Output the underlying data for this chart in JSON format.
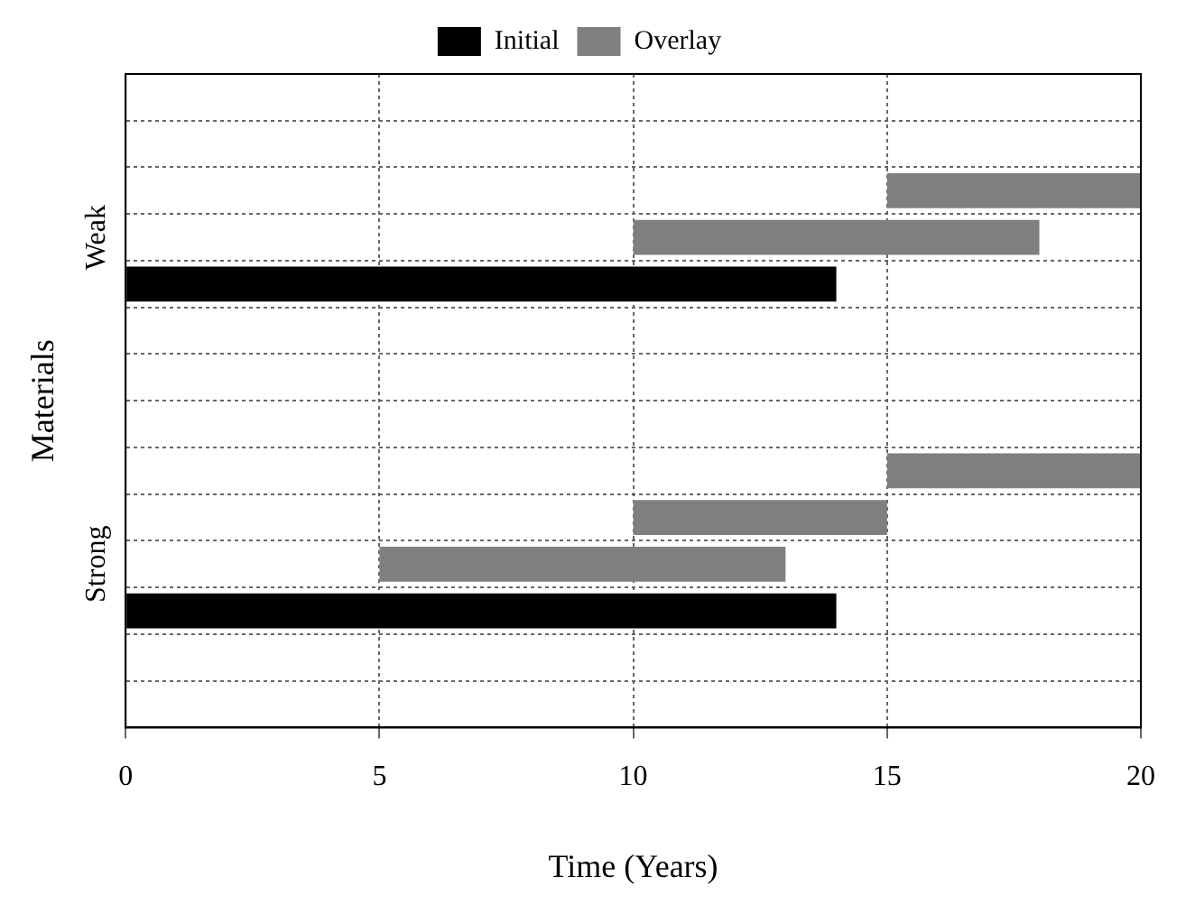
{
  "chart_data": {
    "type": "bar",
    "orientation": "horizontal",
    "xlabel": "Time (Years)",
    "ylabel": "Materials",
    "categories": [
      null,
      null,
      null,
      "Weak",
      null,
      null,
      null,
      null,
      null,
      null,
      "Strong",
      null,
      null,
      null
    ],
    "series": [
      {
        "name": "Initial",
        "color": "#000000",
        "values": [
          null,
          null,
          null,
          null,
          14,
          null,
          null,
          null,
          null,
          null,
          null,
          14,
          null,
          null
        ],
        "base": [
          null,
          null,
          null,
          null,
          0,
          null,
          null,
          null,
          null,
          null,
          null,
          0,
          null,
          null
        ]
      },
      {
        "name": "Overlay",
        "color": "#7f7f7f",
        "values": [
          null,
          null,
          5,
          8,
          null,
          null,
          null,
          null,
          5,
          5,
          8,
          null,
          null,
          null
        ],
        "base": [
          null,
          null,
          15,
          10,
          null,
          null,
          null,
          null,
          15,
          10,
          5,
          null,
          null,
          null
        ]
      }
    ],
    "xlim": [
      0,
      20
    ],
    "xticks": [
      0,
      5,
      10,
      15,
      20
    ],
    "grid": true,
    "legend": "top"
  }
}
